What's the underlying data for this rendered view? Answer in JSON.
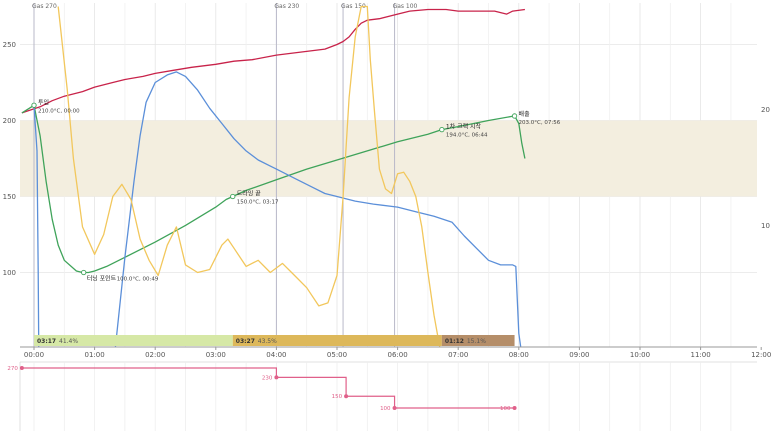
{
  "chart_data": {
    "type": "line",
    "x_unit": "minutes",
    "x_ticks": [
      "00:00",
      "01:00",
      "02:00",
      "03:00",
      "04:00",
      "05:00",
      "06:00",
      "07:00",
      "08:00",
      "09:00",
      "10:00",
      "11:00",
      "12:00"
    ],
    "y_ticks_left": [
      "250",
      "200",
      "150",
      "100"
    ],
    "y_ticks_right": [
      "20",
      "10"
    ],
    "ylim": [
      45,
      275
    ],
    "xlim": [
      -0.2,
      12
    ],
    "colors": {
      "red": "#c8234a",
      "green": "#3fa35a",
      "blue": "#5b8fd9",
      "yellow": "#f2c75c",
      "band": "#f3eedf",
      "gas": "#e0608a"
    },
    "band": [
      150,
      200
    ],
    "series": [
      {
        "key": "red",
        "x": [
          -0.2,
          0.1,
          0.3,
          0.5,
          0.8,
          1.0,
          1.3,
          1.5,
          1.8,
          2.0,
          2.3,
          2.6,
          3.0,
          3.3,
          3.6,
          4.0,
          4.4,
          4.8,
          5.0,
          5.1,
          5.2,
          5.3,
          5.4,
          5.5,
          5.7,
          6.0,
          6.2,
          6.5,
          6.8,
          7.0,
          7.3,
          7.6,
          7.8,
          7.9,
          8.1
        ],
        "y": [
          205,
          209,
          213,
          216,
          219,
          222,
          225,
          227,
          229,
          231,
          233,
          235,
          237,
          239,
          240,
          243,
          245,
          247,
          250,
          252,
          255,
          260,
          264,
          266,
          267,
          270,
          272,
          273,
          273,
          272,
          272,
          272,
          270,
          272,
          273
        ]
      },
      {
        "key": "green",
        "x": [
          -0.2,
          0.0,
          0.1,
          0.2,
          0.3,
          0.4,
          0.5,
          0.7,
          0.8,
          0.9,
          1.0,
          1.2,
          1.5,
          2.0,
          2.5,
          3.0,
          3.17,
          3.5,
          4.0,
          4.5,
          5.0,
          5.5,
          6.0,
          6.5,
          6.73,
          7.0,
          7.5,
          7.93,
          8.0,
          8.05,
          8.1
        ],
        "y": [
          205,
          210,
          190,
          160,
          135,
          118,
          108,
          101,
          100,
          100,
          101,
          104,
          110,
          120,
          131,
          143,
          148,
          154,
          161,
          168,
          174,
          180,
          186,
          191,
          194,
          196,
          200,
          203,
          198,
          185,
          175
        ]
      },
      {
        "key": "blue",
        "x": [
          0.0,
          0.05,
          0.07,
          0.08,
          1.33,
          1.5,
          1.65,
          1.75,
          1.85,
          2.0,
          2.2,
          2.35,
          2.5,
          2.7,
          2.9,
          3.1,
          3.3,
          3.5,
          3.7,
          3.9,
          4.0,
          4.3,
          4.6,
          4.8,
          5.0,
          5.3,
          5.6,
          6.0,
          6.3,
          6.6,
          6.9,
          7.1,
          7.3,
          7.5,
          7.7,
          7.9,
          7.95,
          8.0,
          8.05
        ],
        "y": [
          210,
          180,
          100,
          46,
          46,
          110,
          160,
          190,
          212,
          225,
          230,
          232,
          229,
          220,
          208,
          198,
          188,
          180,
          174,
          170,
          168,
          162,
          156,
          152,
          150,
          147,
          145,
          143,
          140,
          137,
          133,
          124,
          116,
          108,
          105,
          105,
          104,
          60,
          46
        ]
      },
      {
        "key": "yellow",
        "x": [
          0.4,
          0.55,
          0.65,
          0.8,
          1.0,
          1.15,
          1.3,
          1.45,
          1.6,
          1.75,
          1.9,
          2.05,
          2.2,
          2.35,
          2.5,
          2.7,
          2.9,
          3.1,
          3.2,
          3.3,
          3.5,
          3.7,
          3.9,
          4.1,
          4.3,
          4.5,
          4.7,
          4.85,
          5.0,
          5.1,
          5.2,
          5.3,
          5.4,
          5.5,
          5.55,
          5.62,
          5.7,
          5.8,
          5.9,
          6.0,
          6.1,
          6.2,
          6.3,
          6.4,
          6.5,
          6.6,
          6.7,
          6.8,
          6.9,
          7.0,
          7.1,
          7.2,
          7.3,
          7.4,
          7.5
        ],
        "y": [
          275,
          220,
          175,
          130,
          112,
          125,
          150,
          158,
          148,
          122,
          108,
          98,
          118,
          130,
          105,
          100,
          102,
          118,
          122,
          116,
          104,
          108,
          100,
          106,
          98,
          90,
          78,
          80,
          98,
          150,
          215,
          255,
          275,
          275,
          240,
          205,
          168,
          155,
          152,
          165,
          166,
          160,
          150,
          130,
          100,
          72,
          50,
          42,
          45,
          48,
          45,
          47,
          44,
          46,
          45
        ]
      }
    ],
    "annotations": [
      {
        "name": "투입",
        "value": "210.0°C, 00:00",
        "x": 0.0,
        "y": 210
      },
      {
        "name": "터닝 포인트",
        "value": "100.0°C, 00:49",
        "x": 0.82,
        "y": 100
      },
      {
        "name": "드라잉 끝",
        "value": "150.0°C, 03:17",
        "x": 3.28,
        "y": 150
      },
      {
        "name": "1차 크랙 시작",
        "value": "194.0°C, 06:44",
        "x": 6.73,
        "y": 194
      },
      {
        "name": "배출",
        "value": "203.0°C, 07:56",
        "x": 7.93,
        "y": 203
      }
    ],
    "gas_markers": [
      {
        "label": "Gas 270",
        "x": 0.0
      },
      {
        "label": "Gas 230",
        "x": 4.0
      },
      {
        "label": "Gas 150",
        "x": 5.1
      },
      {
        "label": "Gas 100",
        "x": 5.95
      }
    ],
    "phases": [
      {
        "time": "03:17",
        "pct": "41.4%",
        "start": 0.0,
        "end": 3.28,
        "color": "#d6e8a6"
      },
      {
        "time": "03:27",
        "pct": "43.5%",
        "start": 3.28,
        "end": 6.73,
        "color": "#ddb85a"
      },
      {
        "time": "01:12",
        "pct": "15.1%",
        "start": 6.73,
        "end": 7.93,
        "color": "#b58e69"
      }
    ],
    "gas_steps": [
      {
        "label": "270",
        "x": -0.2,
        "v": 270
      },
      {
        "label": "230",
        "x": 4.0,
        "v": 230
      },
      {
        "label": "150",
        "x": 5.15,
        "v": 150
      },
      {
        "label": "100",
        "x": 5.95,
        "v": 100
      },
      {
        "label": "100",
        "x": 7.93,
        "v": 100
      }
    ]
  }
}
